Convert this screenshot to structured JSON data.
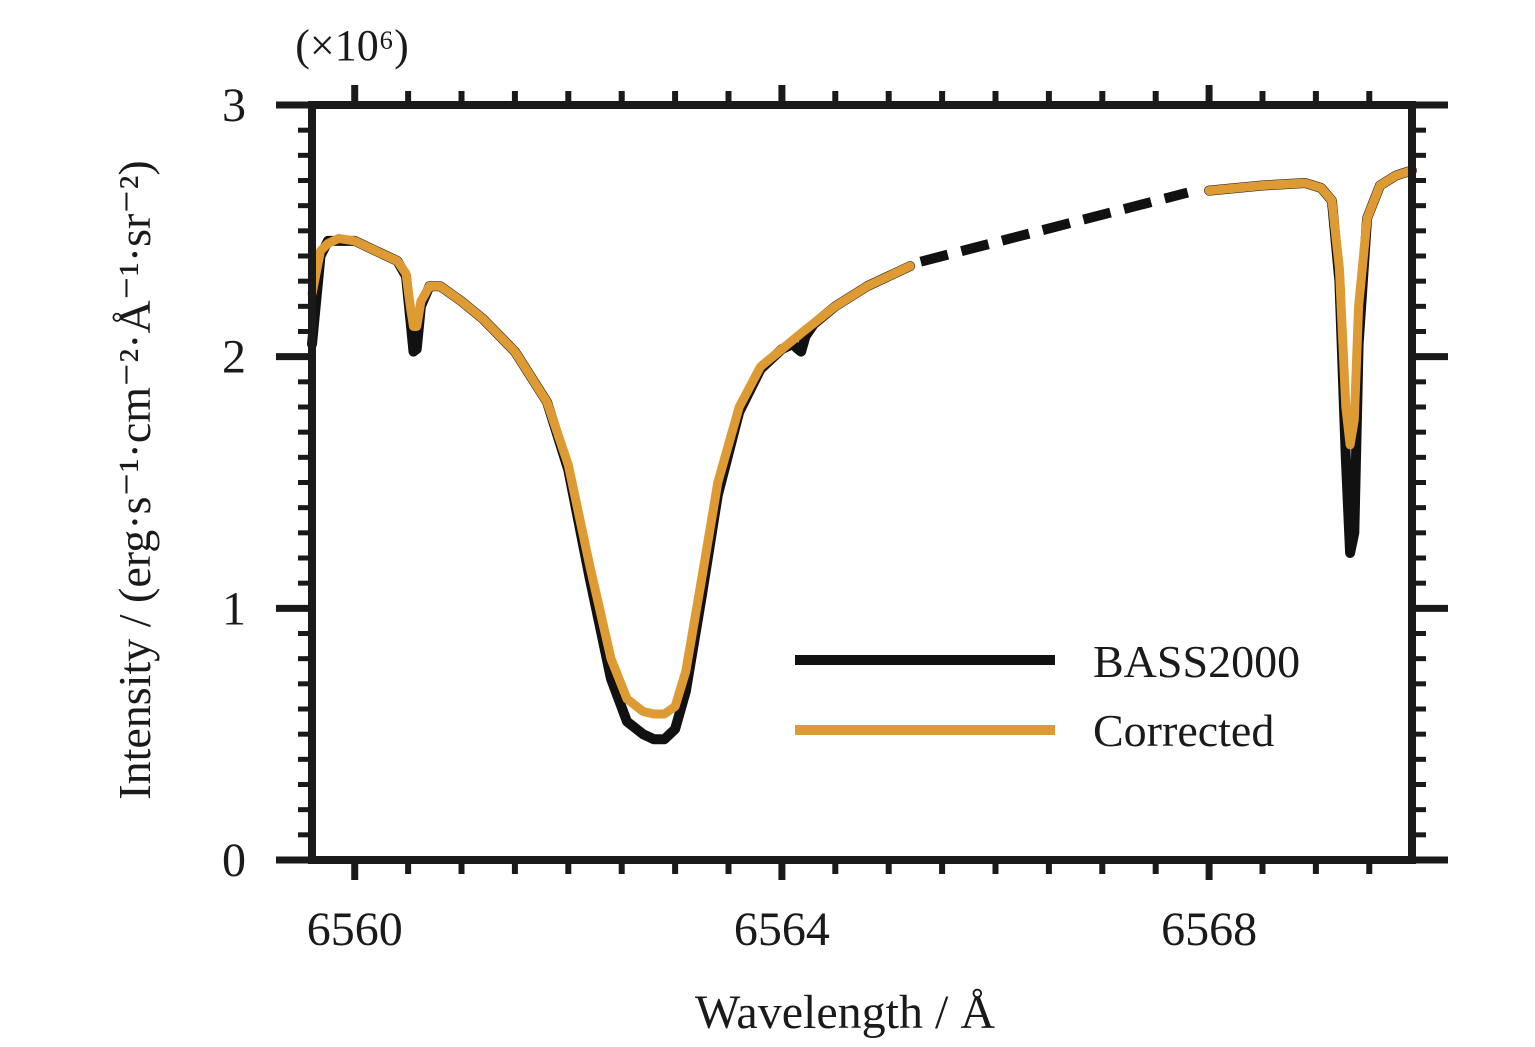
{
  "chart_data": {
    "type": "line",
    "title": "",
    "xlabel": "Wavelength / Å",
    "ylabel": "Intensity / (erg·s⁻¹·cm⁻²·Å⁻¹·sr⁻²)",
    "y_multiplier": "(×10⁶)",
    "xlim": [
      6559.6,
      6569.9
    ],
    "ylim": [
      0,
      3
    ],
    "x_ticks": [
      6560,
      6564,
      6568
    ],
    "x_tick_labels": [
      "6560",
      "6564",
      "6568"
    ],
    "y_ticks": [
      0,
      1,
      2,
      3
    ],
    "y_tick_labels": [
      "0",
      "1",
      "2",
      "3"
    ],
    "grid": false,
    "legend_position": "lower-right",
    "colors": {
      "BASS2000": "#111111",
      "Corrected": "#de9b34"
    },
    "series": [
      {
        "name": "BASS2000",
        "x": [
          6559.6,
          6559.68,
          6559.75,
          6559.85,
          6560.0,
          6560.2,
          6560.4,
          6560.48,
          6560.52,
          6560.55,
          6560.58,
          6560.62,
          6560.7,
          6560.8,
          6561.0,
          6561.2,
          6561.5,
          6561.8,
          6562.0,
          6562.2,
          6562.4,
          6562.55,
          6562.7,
          6562.8,
          6562.9,
          6563.0,
          6563.1,
          6563.25,
          6563.4,
          6563.6,
          6563.8,
          6564.0,
          6564.1,
          6564.15,
          6564.18,
          6564.22,
          6564.3,
          6564.5,
          6564.8,
          6565.2,
          6565.6,
          6566.0,
          6566.5,
          6567.0,
          6567.5,
          6568.0,
          6568.5,
          6568.9,
          6569.05,
          6569.15,
          6569.22,
          6569.28,
          6569.32,
          6569.36,
          6569.4,
          6569.48,
          6569.6,
          6569.75,
          6569.9
        ],
        "y": [
          2.05,
          2.4,
          2.46,
          2.46,
          2.46,
          2.42,
          2.38,
          2.32,
          2.15,
          2.02,
          2.03,
          2.2,
          2.28,
          2.28,
          2.22,
          2.15,
          2.02,
          1.82,
          1.55,
          1.12,
          0.72,
          0.55,
          0.5,
          0.48,
          0.48,
          0.52,
          0.67,
          1.05,
          1.45,
          1.78,
          1.95,
          2.03,
          2.05,
          2.03,
          2.02,
          2.08,
          2.13,
          2.2,
          2.28,
          2.36,
          2.43,
          2.49,
          2.55,
          2.6,
          2.64,
          2.66,
          2.68,
          2.69,
          2.67,
          2.62,
          2.3,
          1.6,
          1.22,
          1.3,
          2.05,
          2.55,
          2.68,
          2.72,
          2.74
        ]
      },
      {
        "name": "Corrected",
        "x": [
          6559.6,
          6559.68,
          6559.75,
          6559.85,
          6560.0,
          6560.2,
          6560.4,
          6560.48,
          6560.52,
          6560.55,
          6560.58,
          6560.62,
          6560.7,
          6560.8,
          6561.0,
          6561.2,
          6561.5,
          6561.8,
          6562.0,
          6562.2,
          6562.4,
          6562.55,
          6562.7,
          6562.8,
          6562.9,
          6563.0,
          6563.1,
          6563.25,
          6563.4,
          6563.6,
          6563.8,
          6564.0,
          6564.2,
          6564.5,
          6564.8,
          6565.2,
          6565.6,
          6566.0,
          6566.5,
          6567.0,
          6567.5,
          6568.0,
          6568.5,
          6568.9,
          6569.05,
          6569.15,
          6569.22,
          6569.28,
          6569.32,
          6569.36,
          6569.4,
          6569.48,
          6569.6,
          6569.75,
          6569.9
        ],
        "y": [
          2.25,
          2.42,
          2.45,
          2.47,
          2.46,
          2.42,
          2.38,
          2.33,
          2.2,
          2.12,
          2.12,
          2.22,
          2.28,
          2.28,
          2.22,
          2.15,
          2.02,
          1.82,
          1.57,
          1.17,
          0.8,
          0.64,
          0.59,
          0.58,
          0.58,
          0.61,
          0.75,
          1.12,
          1.5,
          1.8,
          1.96,
          2.03,
          2.1,
          2.2,
          2.28,
          2.36,
          2.43,
          2.49,
          2.55,
          2.6,
          2.64,
          2.66,
          2.68,
          2.69,
          2.67,
          2.62,
          2.35,
          1.8,
          1.65,
          1.75,
          2.2,
          2.55,
          2.68,
          2.72,
          2.74
        ]
      }
    ],
    "interpolated_x_range": [
      6565.3,
      6567.8
    ]
  }
}
